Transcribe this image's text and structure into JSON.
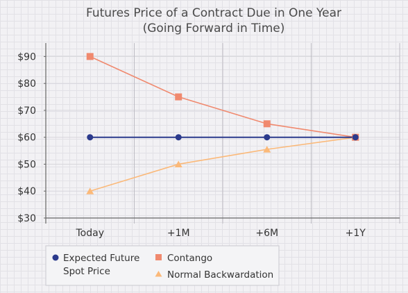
{
  "chart_data": {
    "type": "line",
    "title": [
      "Futures Price of a Contract Due in One Year",
      "(Going Forward in Time)"
    ],
    "xlabel": "",
    "ylabel": "",
    "categories": [
      "Today",
      "+1M",
      "+6M",
      "+1Y"
    ],
    "y_ticks": [
      "$30",
      "$40",
      "$50",
      "$60",
      "$70",
      "$80",
      "$90"
    ],
    "ylim": [
      30,
      95
    ],
    "grid": true,
    "legend_position": "bottom-left",
    "series": [
      {
        "name": "Expected Future Spot Price",
        "marker": "circle",
        "color": "#2b3a8c",
        "values": [
          60,
          60,
          60,
          60
        ]
      },
      {
        "name": "Contango",
        "marker": "square",
        "color": "#f0896e",
        "values": [
          90,
          75,
          65,
          60
        ]
      },
      {
        "name": "Normal Backwardation",
        "marker": "triangle",
        "color": "#fbb979",
        "values": [
          40,
          50,
          55.5,
          60
        ]
      }
    ],
    "legend": {
      "spot_line1": "Expected Future",
      "spot_line2": "Spot Price",
      "contango": "Contango",
      "backwardation": "Normal Backwardation"
    }
  }
}
